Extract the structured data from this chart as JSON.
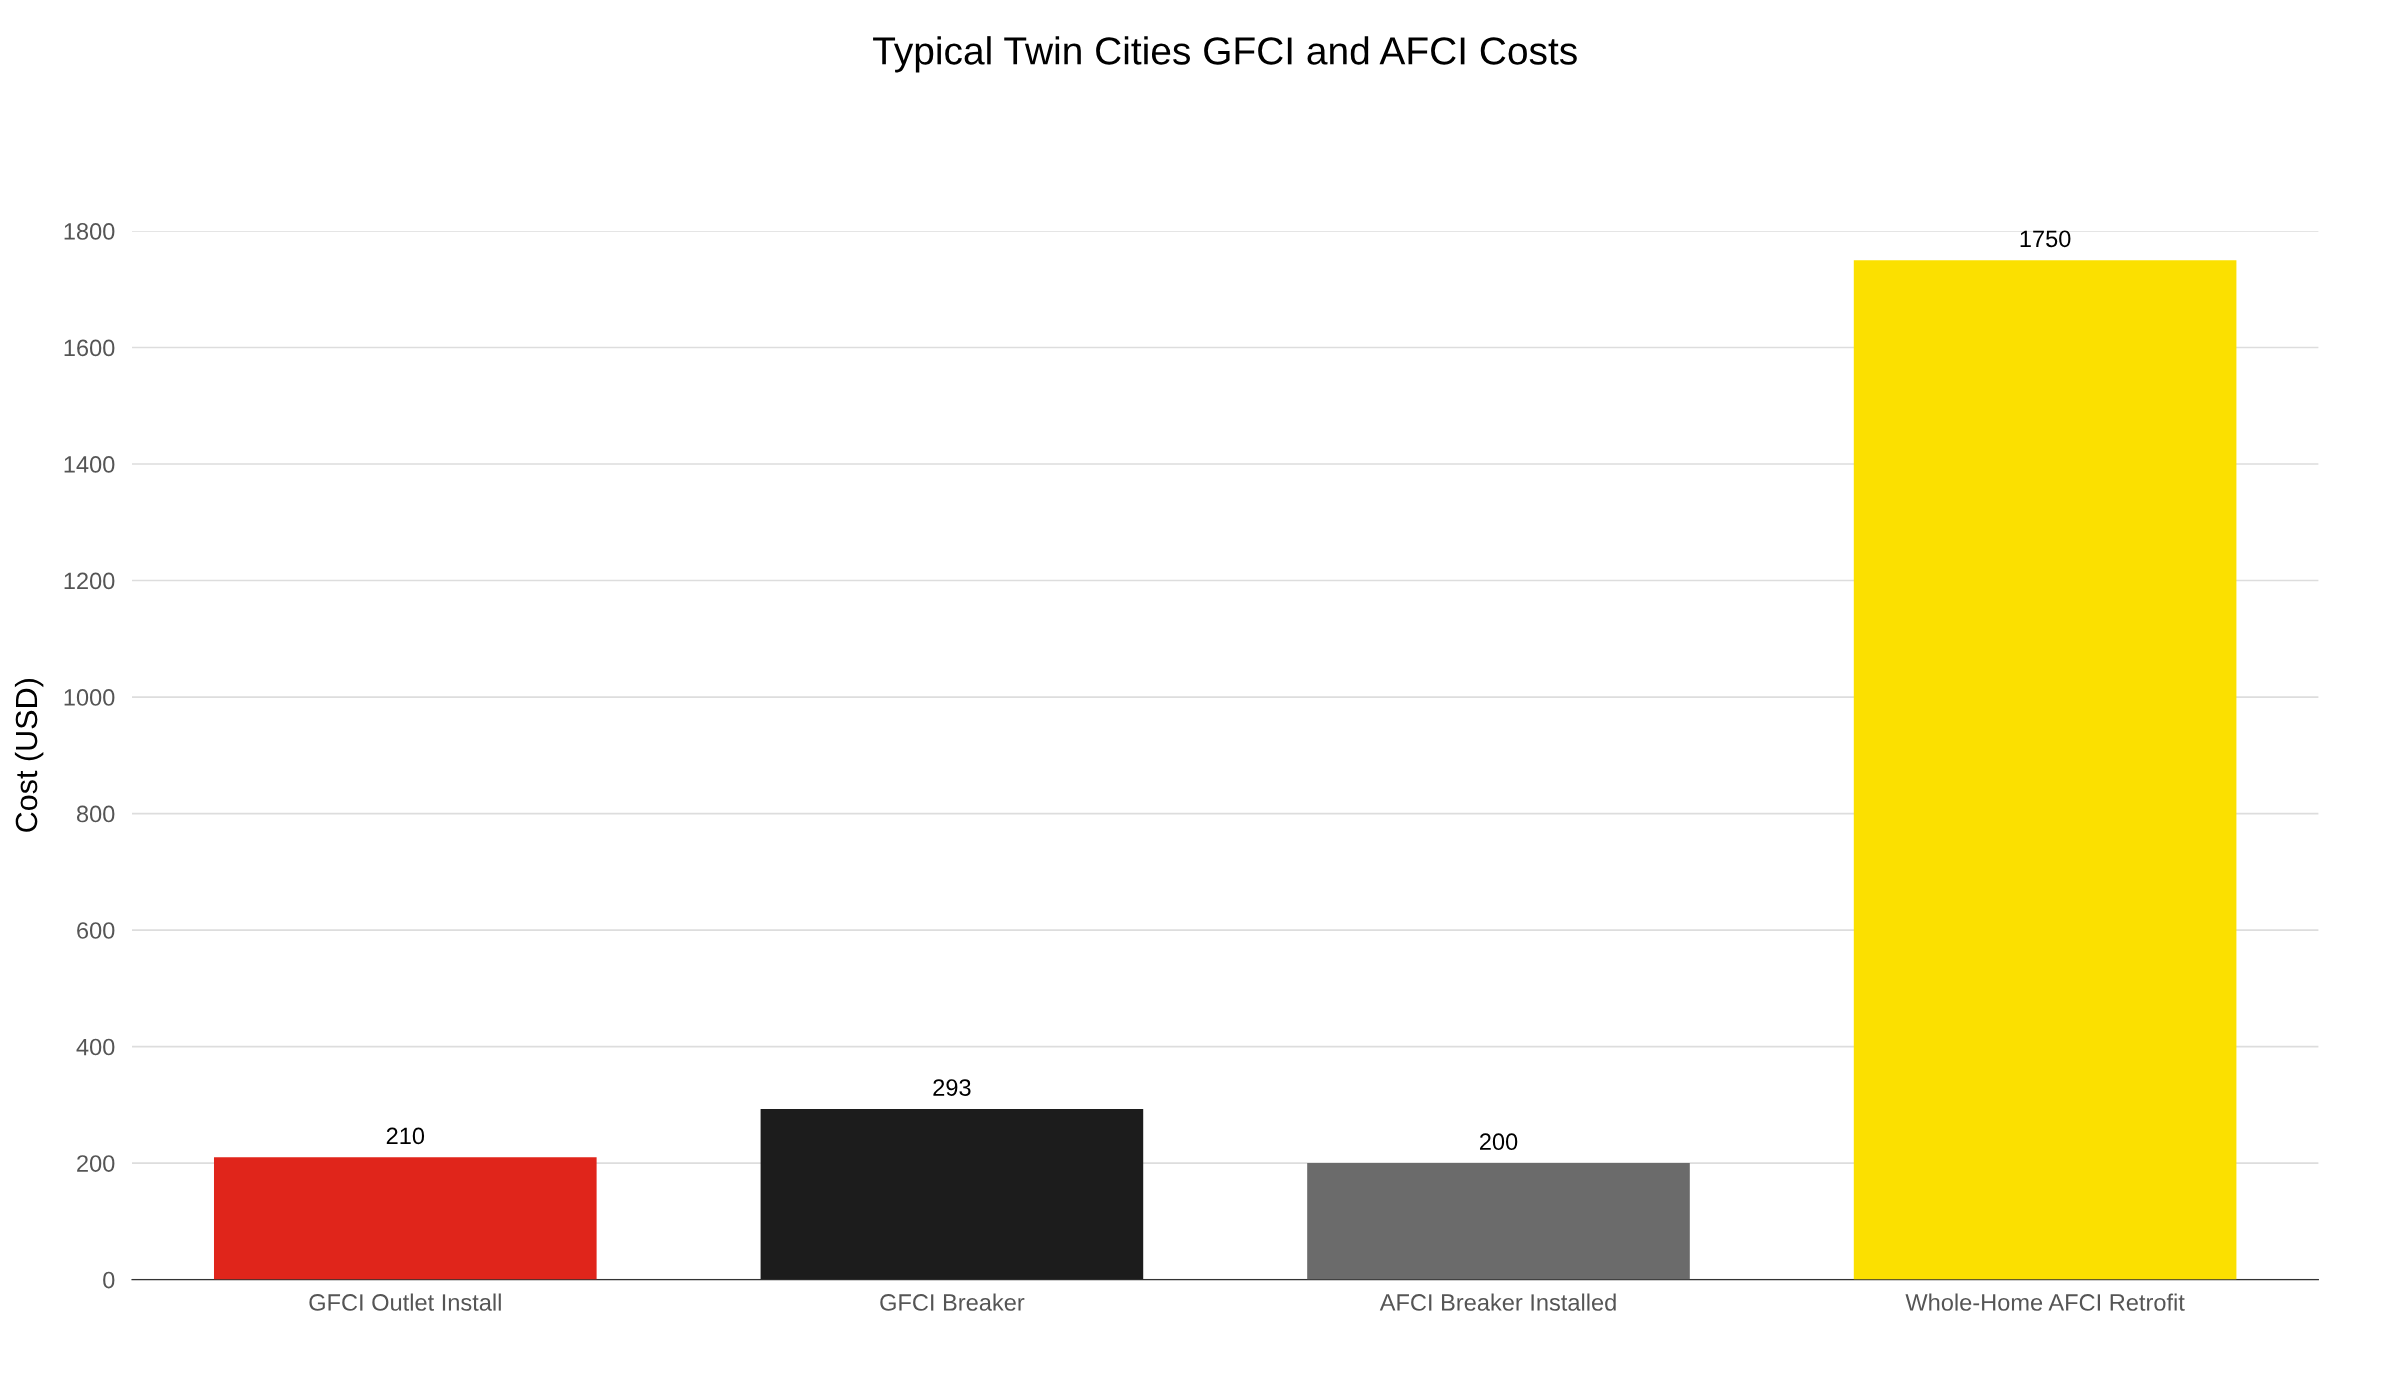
{
  "chart_data": {
    "type": "bar",
    "title": "Typical Twin Cities GFCI and AFCI Costs",
    "ylabel": "Cost (USD)",
    "categories": [
      "GFCI Outlet Install",
      "GFCI Breaker",
      "AFCI Breaker Installed",
      "Whole-Home AFCI Retrofit"
    ],
    "values": [
      210,
      293,
      200,
      1750
    ],
    "colors": [
      "#e0251b",
      "#1c1c1c",
      "#6b6b6b",
      "#fbe000"
    ],
    "ylim": [
      0,
      1800
    ],
    "yticks": [
      0,
      200,
      400,
      600,
      800,
      1000,
      1200,
      1400,
      1600,
      1800
    ],
    "grid": "y",
    "data_labels": true,
    "legend": false
  }
}
